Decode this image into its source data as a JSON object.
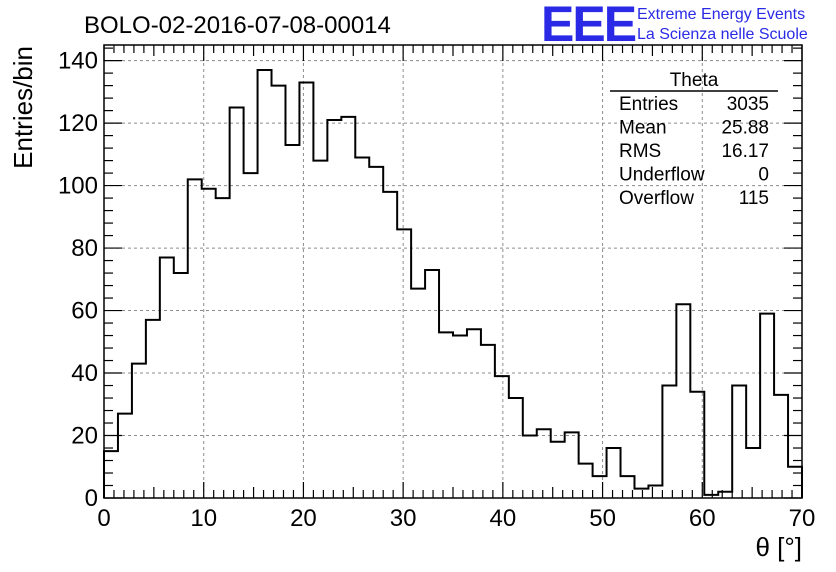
{
  "chart_data": {
    "type": "bar",
    "title": "BOLO-02-2016-07-08-00014",
    "xlabel": "θ [°]",
    "ylabel": "Entries/bin",
    "xlim": [
      0,
      70
    ],
    "ylim": [
      0,
      145
    ],
    "xticks": [
      0,
      10,
      20,
      30,
      40,
      50,
      60,
      70
    ],
    "yticks": [
      0,
      20,
      40,
      60,
      80,
      100,
      120,
      140
    ],
    "grid": true,
    "bin_width": 1.4,
    "values": [
      15,
      27,
      43,
      57,
      77,
      72,
      102,
      99,
      96,
      125,
      104,
      137,
      132,
      113,
      133,
      108,
      121,
      122,
      109,
      106,
      98,
      86,
      67,
      73,
      53,
      52,
      54,
      49,
      39,
      32,
      20,
      22,
      18,
      21,
      11,
      7,
      16,
      7,
      3,
      4,
      36,
      62,
      34,
      1,
      2,
      36,
      16,
      59,
      33,
      10
    ],
    "legend": {
      "position": "top-right",
      "title": "Theta",
      "rows": [
        {
          "label": "Entries",
          "value": "3035"
        },
        {
          "label": "Mean",
          "value": "25.88"
        },
        {
          "label": "RMS",
          "value": "16.17"
        },
        {
          "label": "Underflow",
          "value": "0"
        },
        {
          "label": "Overflow",
          "value": "115"
        }
      ]
    }
  },
  "logo": {
    "mark": "EEE",
    "line1": "Extreme Energy Events",
    "line2": "La Scienza nelle Scuole",
    "color": "#2a2ae6"
  }
}
